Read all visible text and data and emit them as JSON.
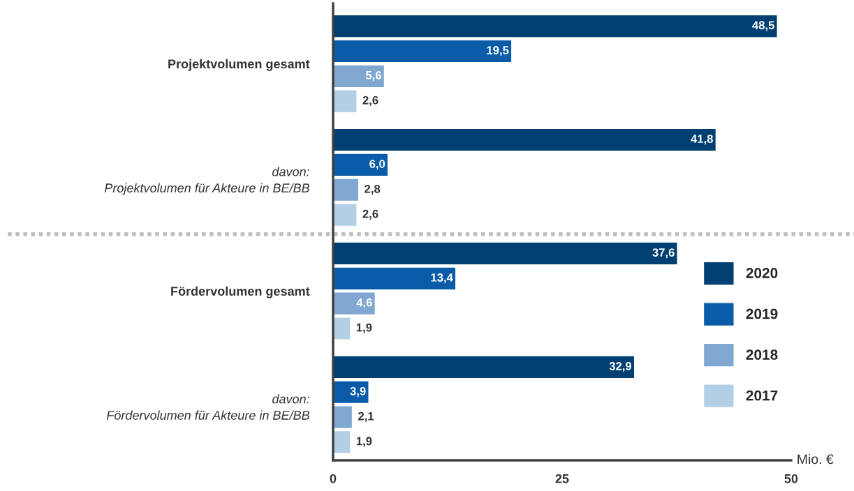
{
  "chart_data": {
    "type": "bar",
    "orientation": "horizontal",
    "categories": [
      "Projektvolumen gesamt",
      "davon:\nProjektvolumen für Akteure in BE/BB",
      "Fördervolumen gesamt",
      "davon:\nFördervolumen für Akteure in BE/BB"
    ],
    "series": [
      {
        "name": "2020",
        "color": "#003f72",
        "values": [
          48.5,
          41.8,
          37.6,
          32.9
        ],
        "value_labels": [
          "48,5",
          "41,8",
          "37,6",
          "32,9"
        ]
      },
      {
        "name": "2019",
        "color": "#0a5ca8",
        "values": [
          19.5,
          6.0,
          13.4,
          3.9
        ],
        "value_labels": [
          "19,5",
          "6,0",
          "13,4",
          "3,9"
        ]
      },
      {
        "name": "2018",
        "color": "#7fa7d0",
        "values": [
          5.6,
          2.8,
          4.6,
          2.1
        ],
        "value_labels": [
          "5,6",
          "2,8",
          "4,6",
          "2,1"
        ]
      },
      {
        "name": "2017",
        "color": "#b3cfe6",
        "values": [
          2.6,
          2.6,
          1.9,
          1.9
        ],
        "value_labels": [
          "2,6",
          "2,6",
          "1,9",
          "1,9"
        ]
      }
    ],
    "xlabel": "Mio. €",
    "xlim": [
      0,
      50
    ],
    "xticks": [
      0,
      25,
      50
    ],
    "grid": false,
    "legend": "right"
  }
}
